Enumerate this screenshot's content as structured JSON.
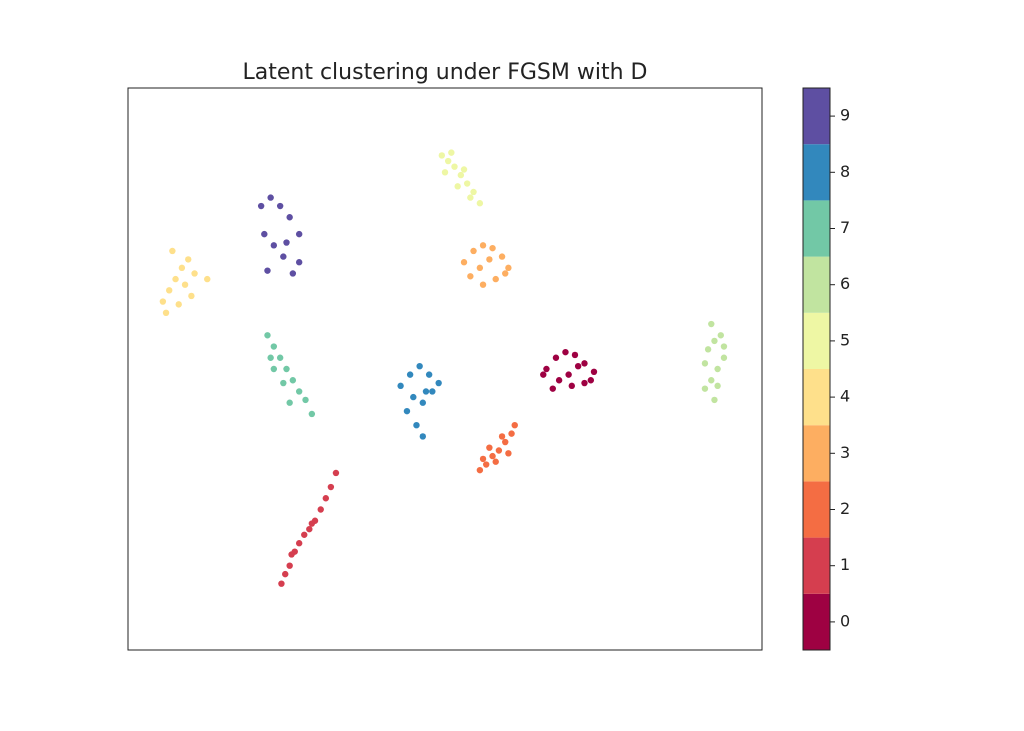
{
  "chart_data": {
    "type": "scatter",
    "title": "Latent clustering under FGSM with D",
    "xlim": [
      0,
      100
    ],
    "ylim": [
      0,
      100
    ],
    "colorbar": {
      "lim": [
        -0.5,
        9.5
      ],
      "ticks": [
        0,
        1,
        2,
        3,
        4,
        5,
        6,
        7,
        8,
        9
      ]
    },
    "series": [
      {
        "color": "#9e0142",
        "x": [
          66,
          67.5,
          69,
          70.5,
          72,
          73.5,
          68,
          70,
          72,
          67,
          71,
          69.5,
          65.5,
          73
        ],
        "y": [
          50,
          52,
          53,
          52.5,
          51,
          49.5,
          48,
          47,
          47.5,
          46.5,
          50.5,
          49,
          49,
          48
        ]
      },
      {
        "color": "#d53e4f",
        "x": [
          24.2,
          24.8,
          25.5,
          26.3,
          27,
          27.8,
          28.6,
          29.5,
          30.4,
          31.2,
          32,
          32.8,
          25.8,
          29
        ],
        "y": [
          11.8,
          13.5,
          15,
          17.5,
          19,
          20.5,
          21.5,
          23,
          25,
          27,
          29,
          31.5,
          17,
          22.5
        ]
      },
      {
        "color": "#f46d43",
        "x": [
          55.5,
          56.5,
          57.5,
          58.5,
          59.5,
          60.5,
          57,
          58,
          59,
          56,
          60,
          61
        ],
        "y": [
          32,
          33,
          34.5,
          35.5,
          37,
          38.5,
          36,
          33.5,
          38,
          34,
          35,
          40
        ]
      },
      {
        "color": "#fdae61",
        "x": [
          53,
          54.5,
          56,
          57.5,
          59,
          60,
          54,
          56,
          58,
          55.5,
          57,
          59.5
        ],
        "y": [
          69,
          71,
          72,
          71.5,
          70,
          68,
          66.5,
          65,
          66,
          68,
          69.5,
          67
        ]
      },
      {
        "color": "#fee08b",
        "x": [
          5.5,
          6.5,
          7.5,
          8.5,
          9.5,
          10.5,
          6,
          8,
          10,
          7,
          9,
          12.5
        ],
        "y": [
          62,
          64,
          66,
          68,
          69.5,
          67,
          60,
          61.5,
          63,
          71,
          65,
          66
        ]
      },
      {
        "color": "#eef7a4",
        "x": [
          49.5,
          50.5,
          51.5,
          52.5,
          53.5,
          54.5,
          55.5,
          50,
          52,
          54,
          51,
          53
        ],
        "y": [
          88,
          87,
          86,
          84.5,
          83,
          81.5,
          79.5,
          85,
          82.5,
          80.5,
          88.5,
          85.5
        ]
      },
      {
        "color": "#c1e4a0",
        "x": [
          91,
          92,
          93,
          94,
          91.5,
          92.5,
          93.5,
          91,
          92.5,
          93,
          94,
          92
        ],
        "y": [
          46.5,
          48,
          50,
          52,
          53.5,
          55,
          56,
          51,
          44.5,
          47,
          54,
          58
        ]
      },
      {
        "color": "#72c8a6",
        "x": [
          22,
          23,
          24,
          25,
          26,
          27,
          23,
          24.5,
          25.5,
          22.5,
          28,
          29
        ],
        "y": [
          56,
          54,
          52,
          50,
          48,
          46,
          50,
          47.5,
          44,
          52,
          44.5,
          42
        ]
      },
      {
        "color": "#3288bd",
        "x": [
          43,
          44.5,
          46,
          47.5,
          49,
          45,
          46.5,
          44,
          47,
          45.5,
          48,
          46.5
        ],
        "y": [
          47,
          49,
          50.5,
          49,
          47.5,
          45,
          44,
          42.5,
          46,
          40,
          46,
          38
        ]
      },
      {
        "color": "#5e4fa2",
        "x": [
          21,
          22.5,
          24,
          25.5,
          27,
          21.5,
          23,
          24.5,
          26,
          22,
          25,
          27
        ],
        "y": [
          79,
          80.5,
          79,
          77,
          74,
          74,
          72,
          70,
          67,
          67.5,
          72.5,
          69
        ]
      }
    ]
  }
}
